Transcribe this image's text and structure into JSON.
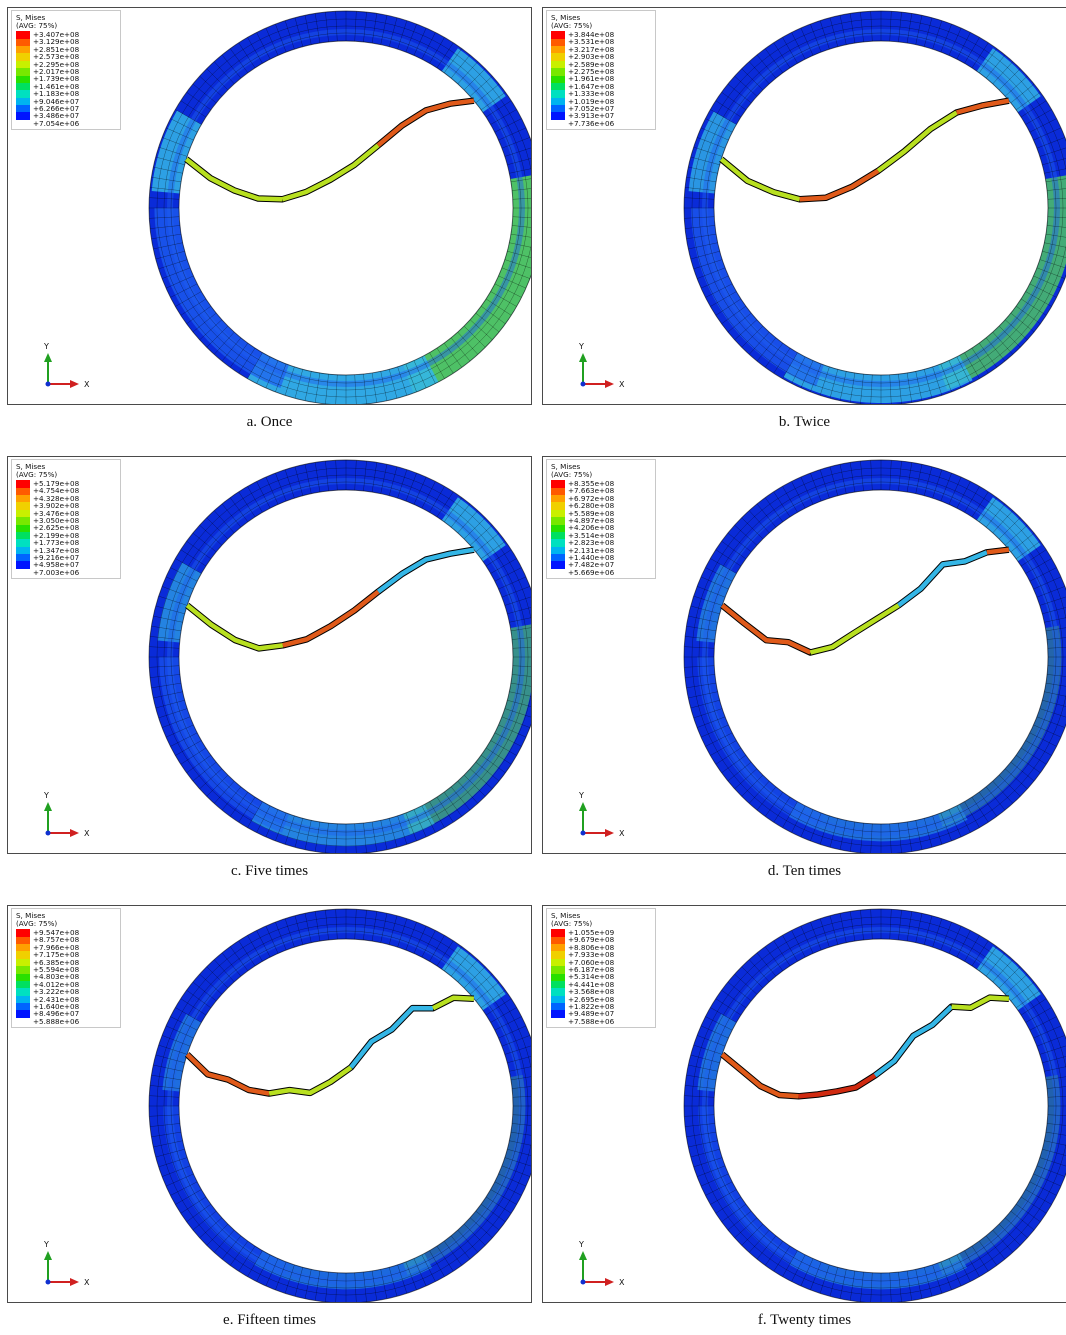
{
  "legend_title_line1": "S, Mises",
  "legend_title_line2": "(AVG: 75%)",
  "axis_labels": {
    "y": "Y",
    "x": "X"
  },
  "legend_colors": [
    "#ff0000",
    "#ff5a00",
    "#ffa000",
    "#f0d000",
    "#c8f000",
    "#78e800",
    "#28e000",
    "#00e060",
    "#00e0c0",
    "#00b4f0",
    "#0064ff",
    "#0014ff"
  ],
  "ring_colors": {
    "outer": "#0a2bd8",
    "mid": "#1f60f0",
    "light": "#34b6e6",
    "teal": "#2ed0b0",
    "green": "#55d25a",
    "crack_hi": "#e05a1a",
    "crack_mid": "#b8e020"
  },
  "panels": [
    {
      "caption": "a. Once",
      "legend_values": [
        "+3.407e+08",
        "+3.129e+08",
        "+2.851e+08",
        "+2.573e+08",
        "+2.295e+08",
        "+2.017e+08",
        "+1.739e+08",
        "+1.461e+08",
        "+1.183e+08",
        "+9.046e+07",
        "+6.266e+07",
        "+3.486e+07",
        "+7.054e+06"
      ]
    },
    {
      "caption": "b. Twice",
      "legend_values": [
        "+3.844e+08",
        "+3.531e+08",
        "+3.217e+08",
        "+2.903e+08",
        "+2.589e+08",
        "+2.275e+08",
        "+1.961e+08",
        "+1.647e+08",
        "+1.333e+08",
        "+1.019e+08",
        "+7.052e+07",
        "+3.913e+07",
        "+7.736e+06"
      ]
    },
    {
      "caption": "c. Five times",
      "legend_values": [
        "+5.179e+08",
        "+4.754e+08",
        "+4.328e+08",
        "+3.902e+08",
        "+3.476e+08",
        "+3.050e+08",
        "+2.625e+08",
        "+2.199e+08",
        "+1.773e+08",
        "+1.347e+08",
        "+9.216e+07",
        "+4.958e+07",
        "+7.003e+06"
      ]
    },
    {
      "caption": "d. Ten times",
      "legend_values": [
        "+8.355e+08",
        "+7.663e+08",
        "+6.972e+08",
        "+6.280e+08",
        "+5.589e+08",
        "+4.897e+08",
        "+4.206e+08",
        "+3.514e+08",
        "+2.823e+08",
        "+2.131e+08",
        "+1.440e+08",
        "+7.482e+07",
        "+5.669e+06"
      ]
    },
    {
      "caption": "e. Fifteen times",
      "legend_values": [
        "+9.547e+08",
        "+8.757e+08",
        "+7.966e+08",
        "+7.175e+08",
        "+6.385e+08",
        "+5.594e+08",
        "+4.803e+08",
        "+4.012e+08",
        "+3.222e+08",
        "+2.431e+08",
        "+1.640e+08",
        "+8.496e+07",
        "+5.888e+06"
      ]
    },
    {
      "caption": "f. Twenty times",
      "legend_values": [
        "+1.055e+09",
        "+9.679e+08",
        "+8.806e+08",
        "+7.933e+08",
        "+7.060e+08",
        "+6.187e+08",
        "+5.314e+08",
        "+4.441e+08",
        "+3.568e+08",
        "+2.695e+08",
        "+1.822e+08",
        "+9.489e+07",
        "+7.588e+06"
      ]
    }
  ]
}
